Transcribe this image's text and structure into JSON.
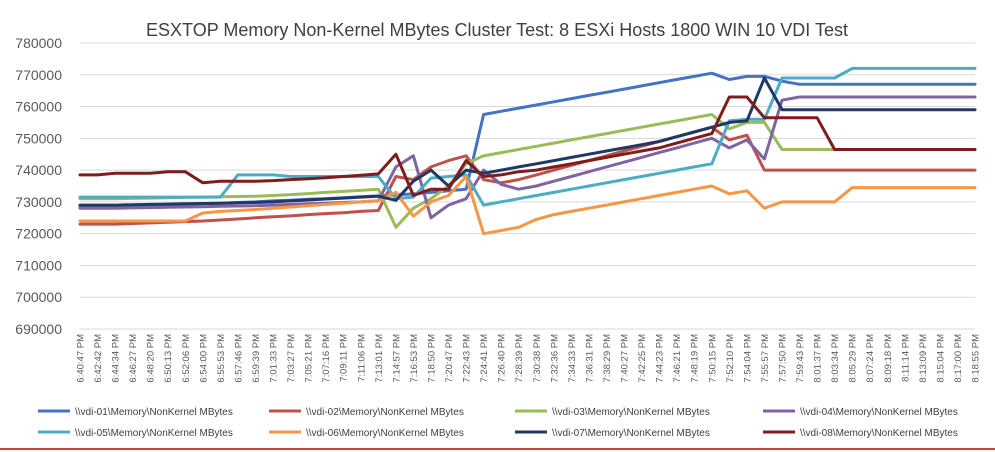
{
  "chart_data": {
    "type": "line",
    "title": "ESXTOP Memory Non-Kernel MBytes Cluster Test: 8 ESXi Hosts 1800 WIN 10 VDI Test",
    "xlabel": "",
    "ylabel": "",
    "ylim": [
      690000,
      780000
    ],
    "yticks": [
      690000,
      700000,
      710000,
      720000,
      730000,
      740000,
      750000,
      760000,
      770000,
      780000
    ],
    "grid": true,
    "legend_position": "bottom",
    "categories": [
      "6:40:47 PM",
      "6:42:42 PM",
      "6:44:34 PM",
      "6:46:27 PM",
      "6:48:20 PM",
      "6:50:13 PM",
      "6:52:06 PM",
      "6:54:00 PM",
      "6:55:53 PM",
      "6:57:46 PM",
      "6:59:39 PM",
      "7:01:33 PM",
      "7:03:27 PM",
      "7:05:21 PM",
      "7:07:16 PM",
      "7:09:11 PM",
      "7:11:06 PM",
      "7:13:01 PM",
      "7:14:57 PM",
      "7:16:53 PM",
      "7:18:50 PM",
      "7:20:47 PM",
      "7:22:43 PM",
      "7:24:41 PM",
      "7:26:40 PM",
      "7:28:39 PM",
      "7:30:38 PM",
      "7:32:36 PM",
      "7:34:33 PM",
      "7:36:31 PM",
      "7:38:29 PM",
      "7:40:27 PM",
      "7:42:25 PM",
      "7:44:23 PM",
      "7:46:21 PM",
      "7:48:19 PM",
      "7:50:15 PM",
      "7:52:10 PM",
      "7:54:04 PM",
      "7:55:57 PM",
      "7:57:50 PM",
      "7:59:43 PM",
      "8:01:37 PM",
      "8:03:34 PM",
      "8:05:29 PM",
      "8:07:24 PM",
      "8:09:18 PM",
      "8:11:14 PM",
      "8:13:09 PM",
      "8:15:04 PM",
      "8:17:00 PM",
      "8:18:55 PM"
    ],
    "series": [
      {
        "name": "\\\\vdi-01\\Memory\\NonKernel MBytes",
        "color": "#4472c4",
        "values": [
          728500,
          728500,
          728600,
          728700,
          728800,
          729000,
          729200,
          729400,
          729600,
          729800,
          730000,
          730300,
          730500,
          730800,
          731000,
          731300,
          731600,
          731900,
          732200,
          732500,
          733000,
          733500,
          734000,
          757500,
          758500,
          759500,
          760500,
          761500,
          762500,
          763500,
          764500,
          765500,
          766500,
          767500,
          768500,
          769500,
          770500,
          768500,
          769500,
          769500,
          768000,
          767000,
          767000,
          767000,
          767000,
          767000,
          767000,
          767000,
          767000,
          767000,
          767000,
          767000
        ]
      },
      {
        "name": "\\\\vdi-02\\Memory\\NonKernel MBytes",
        "color": "#c0504d",
        "values": [
          723000,
          723000,
          723000,
          723200,
          723400,
          723600,
          723800,
          724000,
          724300,
          724600,
          725000,
          725300,
          725600,
          726000,
          726300,
          726600,
          727000,
          727300,
          738000,
          737000,
          741000,
          743000,
          744500,
          737000,
          736000,
          737000,
          738500,
          740000,
          741500,
          743000,
          744500,
          746000,
          747500,
          749000,
          750500,
          752000,
          753500,
          749500,
          751000,
          740000,
          740000,
          740000,
          740000,
          740000,
          740000,
          740000,
          740000,
          740000,
          740000,
          740000,
          740000,
          740000
        ]
      },
      {
        "name": "\\\\vdi-03\\Memory\\NonKernel MBytes",
        "color": "#9bbb59",
        "values": [
          731000,
          731000,
          731000,
          731100,
          731200,
          731300,
          731400,
          731500,
          731600,
          731700,
          731800,
          732000,
          732300,
          732600,
          733000,
          733300,
          733600,
          734000,
          722000,
          728000,
          731000,
          735000,
          742000,
          744500,
          745500,
          746500,
          747500,
          748500,
          749500,
          750500,
          751500,
          752500,
          753500,
          754500,
          755500,
          756500,
          757500,
          753000,
          755000,
          755000,
          746500,
          746500,
          746500,
          746500,
          746500,
          746500,
          746500,
          746500,
          746500,
          746500,
          746500,
          746500
        ]
      },
      {
        "name": "\\\\vdi-04\\Memory\\NonKernel MBytes",
        "color": "#8064a2",
        "values": [
          728000,
          728000,
          728000,
          728100,
          728200,
          728300,
          728400,
          728500,
          728600,
          728700,
          728800,
          729000,
          729200,
          729400,
          729600,
          729800,
          730000,
          730300,
          741000,
          744500,
          725000,
          729000,
          731000,
          740000,
          735500,
          734000,
          735000,
          736500,
          738000,
          739500,
          741000,
          742500,
          744000,
          745500,
          747000,
          748500,
          750000,
          747000,
          749500,
          743500,
          762000,
          763000,
          763000,
          763000,
          763000,
          763000,
          763000,
          763000,
          763000,
          763000,
          763000,
          763000
        ]
      },
      {
        "name": "\\\\vdi-05\\Memory\\NonKernel MBytes",
        "color": "#4bacc6",
        "values": [
          731500,
          731500,
          731500,
          731500,
          731500,
          731500,
          731500,
          731500,
          731500,
          738500,
          738500,
          738500,
          738000,
          738000,
          738000,
          738000,
          738000,
          738000,
          731000,
          731500,
          737500,
          738000,
          738500,
          729000,
          730000,
          731000,
          732000,
          733000,
          734000,
          735000,
          736000,
          737000,
          738000,
          739000,
          740000,
          741000,
          742000,
          755500,
          756000,
          756000,
          769000,
          769000,
          769000,
          769000,
          772000,
          772000,
          772000,
          772000,
          772000,
          772000,
          772000,
          772000
        ]
      },
      {
        "name": "\\\\vdi-06\\Memory\\NonKernel MBytes",
        "color": "#f79646",
        "values": [
          724000,
          724000,
          724000,
          724000,
          724000,
          724000,
          724000,
          726500,
          727000,
          727300,
          727600,
          728000,
          728400,
          728800,
          729200,
          729600,
          730000,
          730400,
          733000,
          725500,
          730000,
          732000,
          738000,
          720000,
          721000,
          722000,
          724500,
          726000,
          727000,
          728000,
          729000,
          730000,
          731000,
          732000,
          733000,
          734000,
          735000,
          732500,
          733500,
          728000,
          730000,
          730000,
          730000,
          730000,
          734500,
          734500,
          734500,
          734500,
          734500,
          734500,
          734500,
          734500
        ]
      },
      {
        "name": "\\\\vdi-07\\Memory\\NonKernel MBytes",
        "color": "#1f3864",
        "values": [
          729000,
          729000,
          729000,
          729100,
          729200,
          729300,
          729400,
          729500,
          729600,
          729700,
          729800,
          730000,
          730300,
          730600,
          730900,
          731200,
          731500,
          731800,
          730500,
          736500,
          740000,
          735000,
          740000,
          739000,
          740000,
          741000,
          742000,
          743000,
          744000,
          745000,
          746000,
          747000,
          748000,
          749000,
          750500,
          752000,
          753500,
          755000,
          755500,
          769000,
          759000,
          759000,
          759000,
          759000,
          759000,
          759000,
          759000,
          759000,
          759000,
          759000,
          759000,
          759000
        ]
      },
      {
        "name": "\\\\vdi-08\\Memory\\NonKernel MBytes",
        "color": "#7f1d1d",
        "values": [
          738500,
          738500,
          739000,
          739000,
          739000,
          739500,
          739500,
          736000,
          736500,
          736500,
          736500,
          736700,
          737000,
          737300,
          737600,
          738000,
          738400,
          738800,
          745000,
          732000,
          734000,
          734000,
          743000,
          738000,
          738500,
          739500,
          740000,
          741000,
          742000,
          743000,
          744000,
          745000,
          746000,
          747000,
          748500,
          750000,
          751500,
          763000,
          763000,
          756500,
          756500,
          756500,
          756500,
          746500,
          746500,
          746500,
          746500,
          746500,
          746500,
          746500,
          746500,
          746500
        ]
      }
    ]
  }
}
